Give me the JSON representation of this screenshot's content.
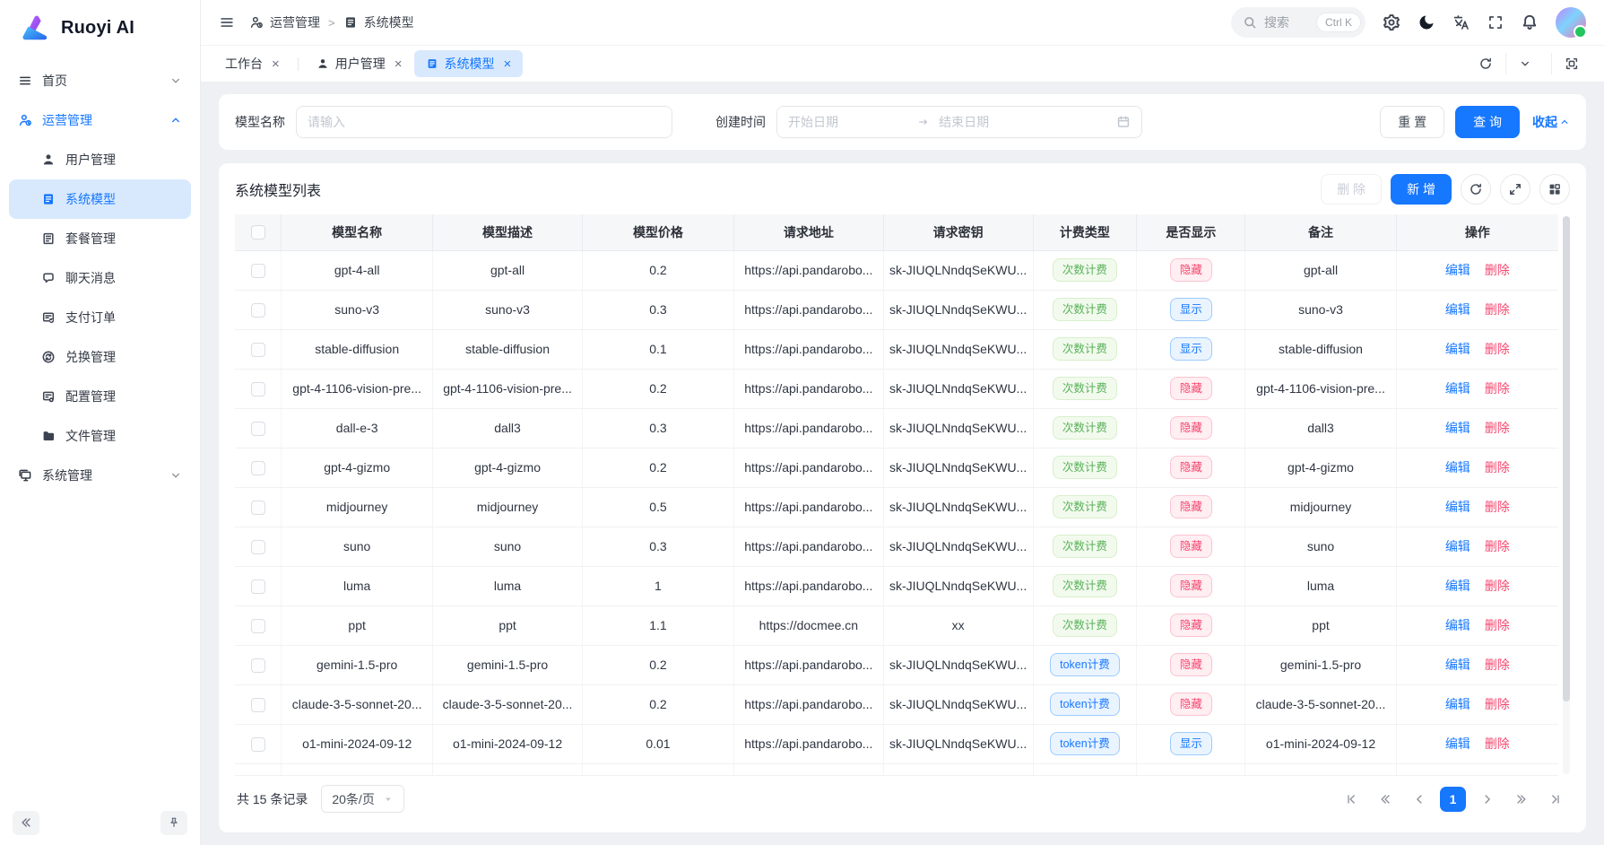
{
  "colors": {
    "primary": "#1677ff",
    "tag_green": "#58b158",
    "tag_red": "#f5476f",
    "tag_blue": "#1677ff",
    "active_bg": "#d8e9fd"
  },
  "app": {
    "title": "Ruoyi AI"
  },
  "sidebar": {
    "home": {
      "label": "首页"
    },
    "ops": {
      "label": "运营管理"
    },
    "ops_children": [
      {
        "id": "users",
        "label": "用户管理",
        "icon": "user-icon",
        "active": false
      },
      {
        "id": "system-model",
        "label": "系统模型",
        "icon": "model-icon",
        "active": true
      },
      {
        "id": "package",
        "label": "套餐管理",
        "icon": "package-icon",
        "active": false
      },
      {
        "id": "chat-message",
        "label": "聊天消息",
        "icon": "chat-icon",
        "active": false
      },
      {
        "id": "pay-order",
        "label": "支付订单",
        "icon": "pay-icon",
        "active": false
      },
      {
        "id": "exchange",
        "label": "兑换管理",
        "icon": "exchange-icon",
        "active": false
      },
      {
        "id": "config",
        "label": "配置管理",
        "icon": "config-icon",
        "active": false
      },
      {
        "id": "file",
        "label": "文件管理",
        "icon": "folder-icon",
        "active": false
      }
    ],
    "system": {
      "label": "系统管理"
    }
  },
  "header": {
    "breadcrumb": [
      {
        "label": "运营管理",
        "icon": "ops-icon"
      },
      {
        "label": "系统模型",
        "icon": "model-icon"
      }
    ],
    "search": {
      "placeholder": "搜索",
      "shortcut": "Ctrl K"
    }
  },
  "tabs": [
    {
      "id": "workbench",
      "label": "工作台",
      "icon": null,
      "active": false
    },
    {
      "id": "user-mgmt",
      "label": "用户管理",
      "icon": "user-icon",
      "active": false
    },
    {
      "id": "system-model",
      "label": "系统模型",
      "icon": "model-icon",
      "active": true
    }
  ],
  "filter": {
    "model_name_label": "模型名称",
    "model_name_placeholder": "请输入",
    "create_time_label": "创建时间",
    "start_placeholder": "开始日期",
    "end_placeholder": "结束日期",
    "reset": "重 置",
    "search": "查 询",
    "collapse": "收起"
  },
  "table": {
    "title": "系统模型列表",
    "delete_btn": "删 除",
    "add_btn": "新 增",
    "columns": [
      "模型名称",
      "模型描述",
      "模型价格",
      "请求地址",
      "请求密钥",
      "计费类型",
      "是否显示",
      "备注",
      "操作"
    ],
    "edit_label": "编辑",
    "delete_label": "删除",
    "rows": [
      {
        "name": "gpt-4-all",
        "desc": "gpt-all",
        "price": "0.2",
        "url": "https://api.pandarobo...",
        "key": "sk-JIUQLNndqSeKWU...",
        "billing": "次数计费",
        "billing_type": "count",
        "visible": "隐藏",
        "visible_type": "hidden",
        "remark": "gpt-all"
      },
      {
        "name": "suno-v3",
        "desc": "suno-v3",
        "price": "0.3",
        "url": "https://api.pandarobo...",
        "key": "sk-JIUQLNndqSeKWU...",
        "billing": "次数计费",
        "billing_type": "count",
        "visible": "显示",
        "visible_type": "shown",
        "remark": "suno-v3"
      },
      {
        "name": "stable-diffusion",
        "desc": "stable-diffusion",
        "price": "0.1",
        "url": "https://api.pandarobo...",
        "key": "sk-JIUQLNndqSeKWU...",
        "billing": "次数计费",
        "billing_type": "count",
        "visible": "显示",
        "visible_type": "shown",
        "remark": "stable-diffusion"
      },
      {
        "name": "gpt-4-1106-vision-pre...",
        "desc": "gpt-4-1106-vision-pre...",
        "price": "0.2",
        "url": "https://api.pandarobo...",
        "key": "sk-JIUQLNndqSeKWU...",
        "billing": "次数计费",
        "billing_type": "count",
        "visible": "隐藏",
        "visible_type": "hidden",
        "remark": "gpt-4-1106-vision-pre..."
      },
      {
        "name": "dall-e-3",
        "desc": "dall3",
        "price": "0.3",
        "url": "https://api.pandarobo...",
        "key": "sk-JIUQLNndqSeKWU...",
        "billing": "次数计费",
        "billing_type": "count",
        "visible": "隐藏",
        "visible_type": "hidden",
        "remark": "dall3"
      },
      {
        "name": "gpt-4-gizmo",
        "desc": "gpt-4-gizmo",
        "price": "0.2",
        "url": "https://api.pandarobo...",
        "key": "sk-JIUQLNndqSeKWU...",
        "billing": "次数计费",
        "billing_type": "count",
        "visible": "隐藏",
        "visible_type": "hidden",
        "remark": "gpt-4-gizmo"
      },
      {
        "name": "midjourney",
        "desc": "midjourney",
        "price": "0.5",
        "url": "https://api.pandarobo...",
        "key": "sk-JIUQLNndqSeKWU...",
        "billing": "次数计费",
        "billing_type": "count",
        "visible": "隐藏",
        "visible_type": "hidden",
        "remark": "midjourney"
      },
      {
        "name": "suno",
        "desc": "suno",
        "price": "0.3",
        "url": "https://api.pandarobo...",
        "key": "sk-JIUQLNndqSeKWU...",
        "billing": "次数计费",
        "billing_type": "count",
        "visible": "隐藏",
        "visible_type": "hidden",
        "remark": "suno"
      },
      {
        "name": "luma",
        "desc": "luma",
        "price": "1",
        "url": "https://api.pandarobo...",
        "key": "sk-JIUQLNndqSeKWU...",
        "billing": "次数计费",
        "billing_type": "count",
        "visible": "隐藏",
        "visible_type": "hidden",
        "remark": "luma"
      },
      {
        "name": "ppt",
        "desc": "ppt",
        "price": "1.1",
        "url": "https://docmee.cn",
        "key": "xx",
        "billing": "次数计费",
        "billing_type": "count",
        "visible": "隐藏",
        "visible_type": "hidden",
        "remark": "ppt"
      },
      {
        "name": "gemini-1.5-pro",
        "desc": "gemini-1.5-pro",
        "price": "0.2",
        "url": "https://api.pandarobo...",
        "key": "sk-JIUQLNndqSeKWU...",
        "billing": "token计费",
        "billing_type": "token",
        "visible": "隐藏",
        "visible_type": "hidden",
        "remark": "gemini-1.5-pro"
      },
      {
        "name": "claude-3-5-sonnet-20...",
        "desc": "claude-3-5-sonnet-20...",
        "price": "0.2",
        "url": "https://api.pandarobo...",
        "key": "sk-JIUQLNndqSeKWU...",
        "billing": "token计费",
        "billing_type": "token",
        "visible": "隐藏",
        "visible_type": "hidden",
        "remark": "claude-3-5-sonnet-20..."
      },
      {
        "name": "o1-mini-2024-09-12",
        "desc": "o1-mini-2024-09-12",
        "price": "0.01",
        "url": "https://api.pandarobo...",
        "key": "sk-JIUQLNndqSeKWU...",
        "billing": "token计费",
        "billing_type": "token",
        "visible": "显示",
        "visible_type": "shown",
        "remark": "o1-mini-2024-09-12"
      }
    ]
  },
  "pagination": {
    "total": "共 15 条记录",
    "page_size": "20条/页",
    "current": "1"
  }
}
